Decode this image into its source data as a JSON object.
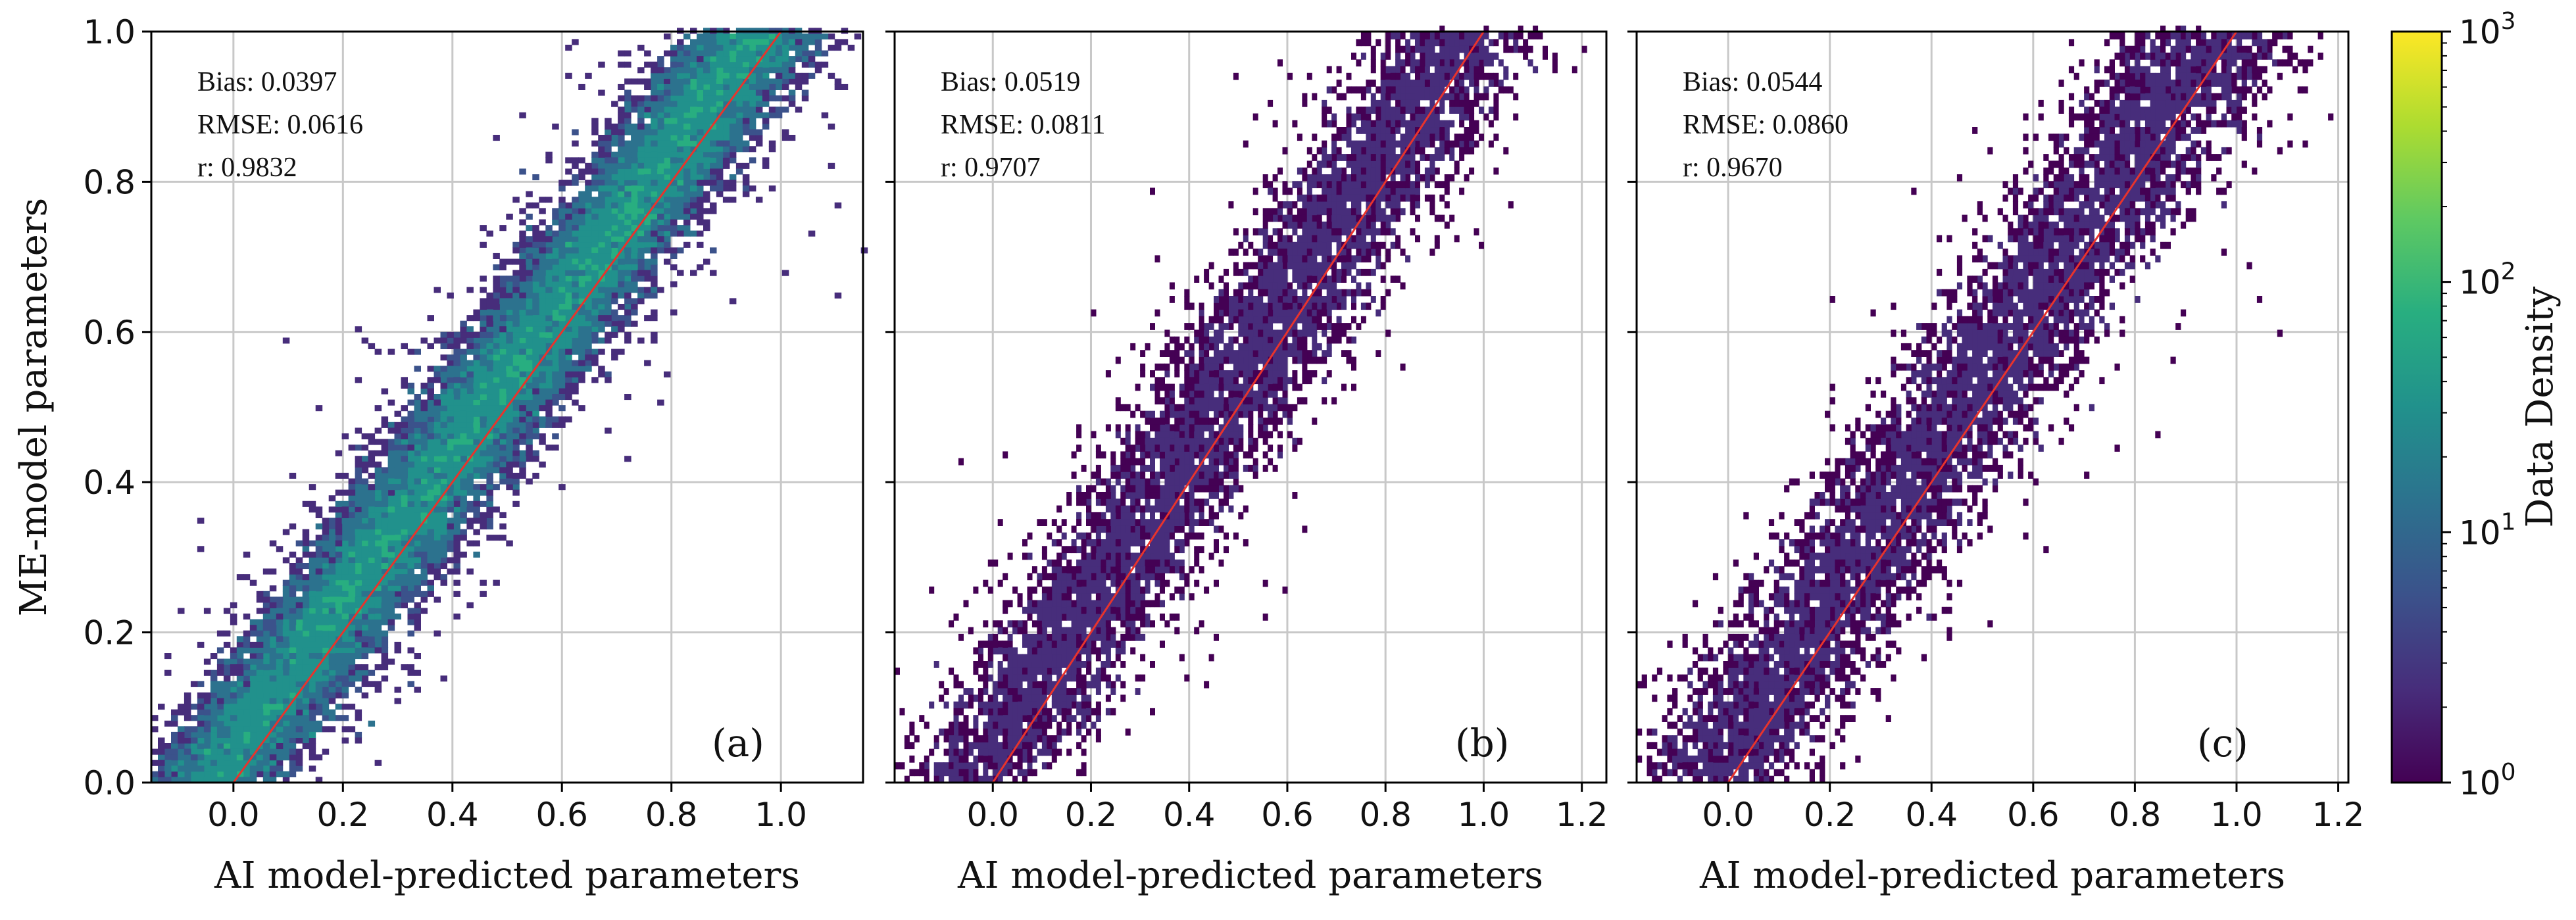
{
  "colors": {
    "one_to_one_line": "#e8332c",
    "grid": "#c8c8c8",
    "axis": "#000000",
    "viridis": [
      "#440154",
      "#472d7b",
      "#3b528b",
      "#2c728e",
      "#21918c",
      "#28ae80",
      "#5ec962",
      "#addc30",
      "#fde725"
    ]
  },
  "chart_data": [
    {
      "type": "heatmap",
      "panel_label": "(a)",
      "xlabel": "AI model-predicted parameters",
      "ylabel": "ME-model parameters",
      "xlim": [
        -0.15,
        1.15
      ],
      "ylim": [
        0.0,
        1.0
      ],
      "xticks": [
        "0.0",
        "0.2",
        "0.4",
        "0.6",
        "0.8",
        "1.0"
      ],
      "yticks": [
        "0.0",
        "0.2",
        "0.4",
        "0.6",
        "0.8",
        "1.0"
      ],
      "grid": true,
      "reference_line": "1:1",
      "stats": {
        "bias": "Bias: 0.0397",
        "rmse": "RMSE: 0.0616",
        "r": "r: 0.9832"
      },
      "scatter_spread": 0.06,
      "density_level": "high (~10^1 per bin)"
    },
    {
      "type": "heatmap",
      "panel_label": "(b)",
      "xlabel": "AI model-predicted parameters",
      "ylabel": "",
      "xlim": [
        -0.2,
        1.25
      ],
      "ylim": [
        0.0,
        1.0
      ],
      "xticks": [
        "0.0",
        "0.2",
        "0.4",
        "0.6",
        "0.8",
        "1.0",
        "1.2"
      ],
      "yticks": [],
      "grid": true,
      "reference_line": "1:1",
      "stats": {
        "bias": "Bias: 0.0519",
        "rmse": "RMSE: 0.0811",
        "r": "r: 0.9707"
      },
      "scatter_spread": 0.08,
      "density_level": "low (~10^0 per bin)"
    },
    {
      "type": "heatmap",
      "panel_label": "(c)",
      "xlabel": "AI model-predicted parameters",
      "ylabel": "",
      "xlim": [
        -0.18,
        1.22
      ],
      "ylim": [
        0.0,
        1.0
      ],
      "xticks": [
        "0.0",
        "0.2",
        "0.4",
        "0.6",
        "0.8",
        "1.0",
        "1.2"
      ],
      "yticks": [],
      "grid": true,
      "reference_line": "1:1",
      "stats": {
        "bias": "Bias: 0.0544",
        "rmse": "RMSE: 0.0860",
        "r": "r: 0.9670"
      },
      "scatter_spread": 0.086,
      "density_level": "low (~10^0 per bin)"
    }
  ],
  "colorbar": {
    "label": "Data Density",
    "scale": "log",
    "range": [
      1,
      1000
    ],
    "ticks": [
      {
        "base": "10",
        "exp": "0",
        "value": 1
      },
      {
        "base": "10",
        "exp": "1",
        "value": 10
      },
      {
        "base": "10",
        "exp": "2",
        "value": 100
      },
      {
        "base": "10",
        "exp": "3",
        "value": 1000
      }
    ]
  }
}
